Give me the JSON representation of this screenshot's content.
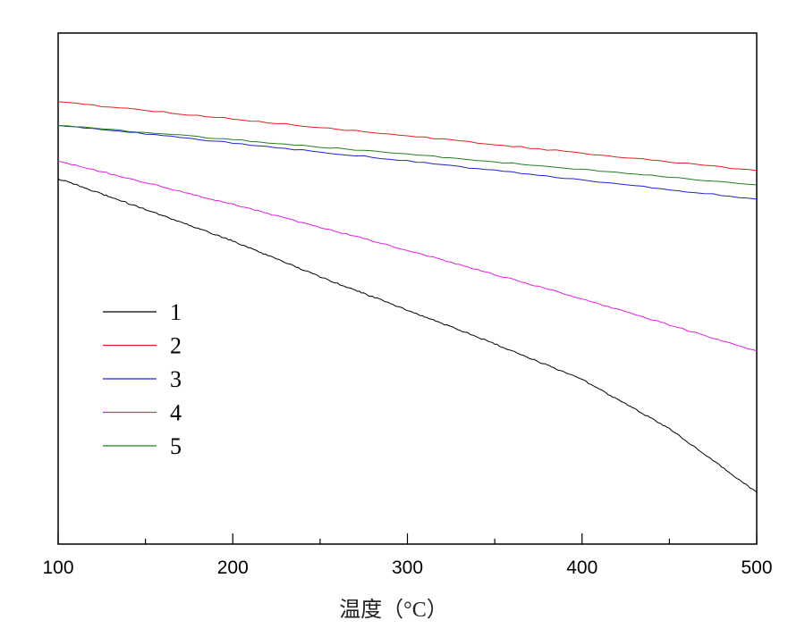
{
  "chart_data": {
    "type": "line",
    "title": "",
    "xlabel": "温度（°C）",
    "ylabel": "",
    "xlim": [
      100,
      500
    ],
    "ylim": [
      0,
      100
    ],
    "y_units": "arbitrary (no y-axis labels shown)",
    "x_major_ticks": [
      100,
      200,
      300,
      400,
      500
    ],
    "x_tick_labels": [
      "100",
      "200",
      "300",
      "400",
      "500"
    ],
    "x_minor_ticks": [
      150,
      250,
      350,
      450
    ],
    "grid": false,
    "legend_position": "center-left",
    "series": [
      {
        "name": "1",
        "color": "#000000",
        "x": [
          100,
          150,
          200,
          250,
          300,
          350,
          400,
          450,
          500
        ],
        "y": [
          71.5,
          65.5,
          59.3,
          52.3,
          45.8,
          39.2,
          32.2,
          22.6,
          10.1
        ]
      },
      {
        "name": "2",
        "color": "#e02020",
        "x": [
          100,
          300,
          500
        ],
        "y": [
          86.5,
          79.9,
          73.1
        ]
      },
      {
        "name": "3",
        "color": "#2020d0",
        "x": [
          100,
          300,
          500
        ],
        "y": [
          82.0,
          75.0,
          67.5
        ]
      },
      {
        "name": "4",
        "color": "#e020e0",
        "x": [
          100,
          200,
          300,
          400,
          500
        ],
        "y": [
          75.0,
          66.5,
          57.5,
          48.0,
          37.8
        ]
      },
      {
        "name": "5",
        "color": "#208020",
        "x": [
          100,
          300,
          500
        ],
        "y": [
          82.0,
          76.3,
          70.3
        ]
      }
    ]
  }
}
